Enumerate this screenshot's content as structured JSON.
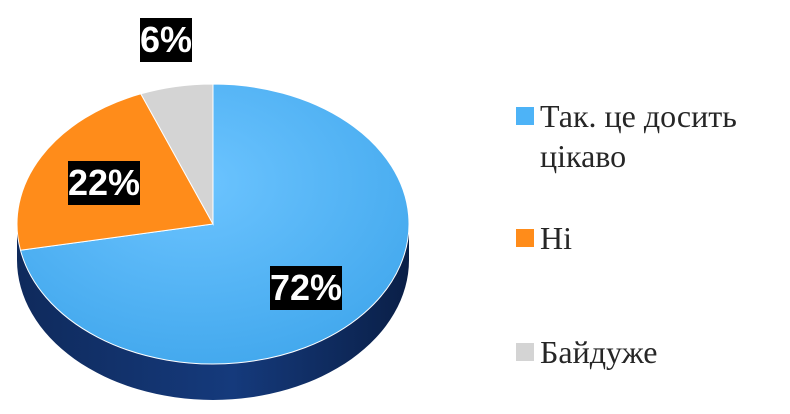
{
  "chart_data": {
    "type": "pie",
    "title": "",
    "slices": [
      {
        "label": "Так. це досить цікаво",
        "value": 72,
        "value_label": "72%",
        "color": "#4db3f7"
      },
      {
        "label": "Ні",
        "value": 22,
        "value_label": "22%",
        "color": "#ff8c1a"
      },
      {
        "label": "Байдуже",
        "value": 6,
        "value_label": "6%",
        "color": "#d4d4d4"
      }
    ],
    "legend_position": "right",
    "style": "3d-pie"
  },
  "legend": {
    "items": [
      {
        "label": "Так. це досить цікаво",
        "color": "#4db3f7"
      },
      {
        "label": "Ні",
        "color": "#ff8c1a"
      },
      {
        "label": "Байдуже",
        "color": "#d4d4d4"
      }
    ]
  }
}
